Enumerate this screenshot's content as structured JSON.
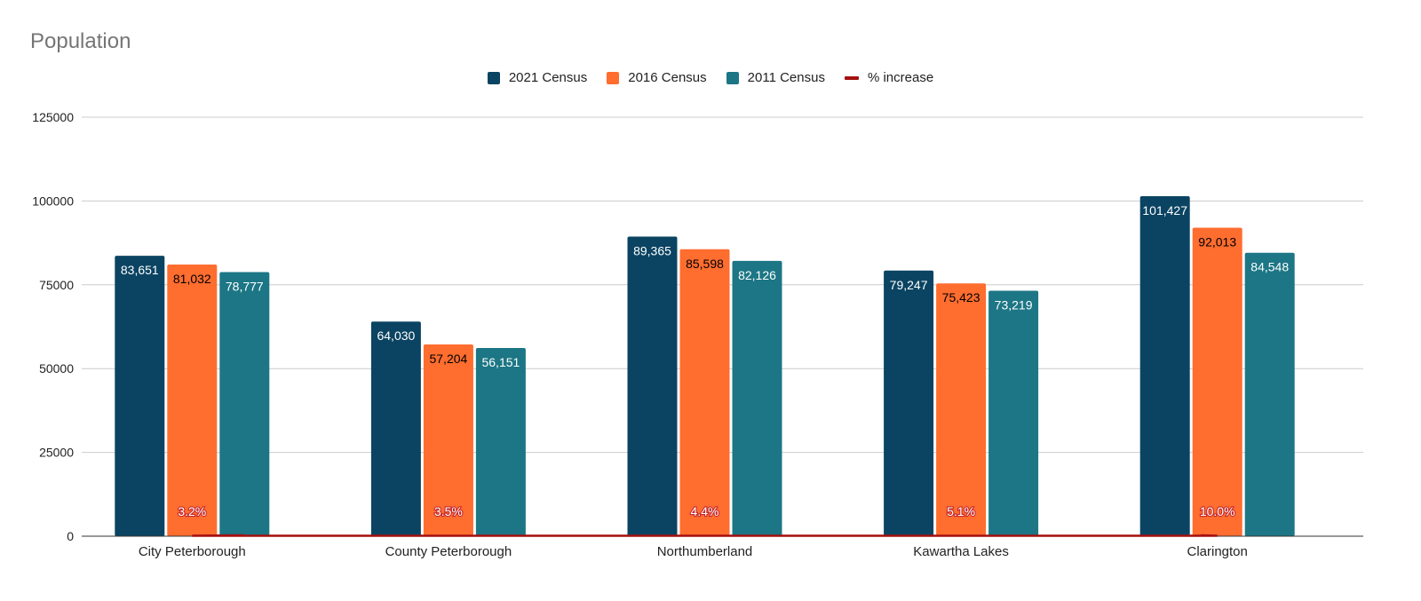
{
  "chart_data": {
    "type": "bar",
    "title": "Population",
    "categories": [
      "City Peterborough",
      "County Peterborough",
      "Northumberland",
      "Kawartha Lakes",
      "Clarington"
    ],
    "series": [
      {
        "name": "2021 Census",
        "color": "#0b4462",
        "values": [
          83651,
          64030,
          89365,
          79247,
          101427
        ],
        "labels": [
          "83,651",
          "64,030",
          "89,365",
          "79,247",
          "101,427"
        ],
        "label_color": "#ffffff"
      },
      {
        "name": "2016 Census",
        "color": "#ff6d2f",
        "values": [
          81032,
          57204,
          85598,
          75423,
          92013
        ],
        "labels": [
          "81,032",
          "57,204",
          "85,598",
          "75,423",
          "92,013"
        ],
        "label_color": "#000000"
      },
      {
        "name": "2011 Census",
        "color": "#1c7685",
        "values": [
          78777,
          56151,
          82126,
          73219,
          84548
        ],
        "labels": [
          "78,777",
          "56,151",
          "82,126",
          "73,219",
          "84,548"
        ],
        "label_color": "#ffffff"
      }
    ],
    "line_series": {
      "name": "% increase",
      "color": "#a50f0f",
      "values": [
        3.2,
        3.5,
        4.4,
        5.1,
        10.0
      ],
      "labels": [
        "3.2%",
        "3.5%",
        "4.4%",
        "5.1%",
        "10.0%"
      ]
    },
    "yticks": [
      "0",
      "25000",
      "50000",
      "75000",
      "100000",
      "125000"
    ],
    "ylim": [
      0,
      125000
    ],
    "xlabel": "",
    "ylabel": "",
    "grid": true,
    "legend_position": "top"
  }
}
